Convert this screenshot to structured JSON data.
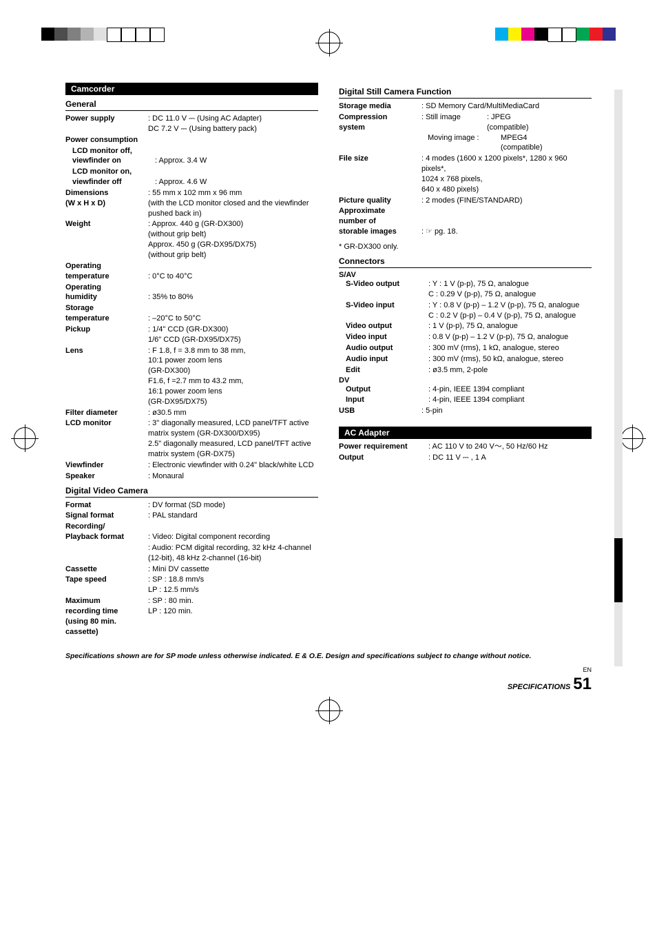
{
  "top_colors_left": [
    "#000000",
    "#4d4d4d",
    "#808080",
    "#b3b3b3",
    "#e0e0e0",
    "#ffffff",
    "#ffffff",
    "#ffffff",
    "#ffffff"
  ],
  "top_colors_right": [
    "#00aeef",
    "#fff200",
    "#ec008c",
    "#000000",
    "#ffffff",
    "#ffffff",
    "#00a651",
    "#ed1c24",
    "#2e3192"
  ],
  "camcorder_header": "Camcorder",
  "general_header": "General",
  "power_supply_label": "Power supply",
  "power_supply_value": "DC 11.0 V ⎓ (Using AC Adapter)\nDC 7.2 V ⎓ (Using battery pack)",
  "power_consumption_label": "Power consumption",
  "lcd_off_vf_on_label": "LCD monitor off,\nviewfinder on",
  "lcd_off_vf_on_value": "Approx. 3.4 W",
  "lcd_on_vf_off_label": "LCD monitor on,\nviewfinder off",
  "lcd_on_vf_off_value": "Approx. 4.6 W",
  "dimensions_label": "Dimensions\n(W x H x D)",
  "dimensions_value": "55 mm x 102 mm x 96 mm\n(with the LCD monitor closed and the viewfinder pushed back in)",
  "weight_label": "Weight",
  "weight_value": "Approx. 440 g (GR-DX300)\n(without grip belt)\nApprox. 450 g (GR-DX95/DX75)\n(without grip belt)",
  "op_temp_label": "Operating\ntemperature",
  "op_temp_value": "0°C to 40°C",
  "op_humidity_label": "Operating\nhumidity",
  "op_humidity_value": "35% to 80%",
  "storage_temp_label": "Storage\ntemperature",
  "storage_temp_value": "–20°C to 50°C",
  "pickup_label": "Pickup",
  "pickup_value": "1/4\" CCD (GR-DX300)\n1/6\" CCD (GR-DX95/DX75)",
  "lens_label": "Lens",
  "lens_value": "F 1.8, f = 3.8 mm to 38 mm,\n10:1 power zoom lens\n(GR-DX300)\nF1.6, f =2.7 mm to 43.2 mm,\n16:1 power zoom lens\n(GR-DX95/DX75)",
  "filter_label": "Filter diameter",
  "filter_value": "ø30.5 mm",
  "lcd_label": "LCD monitor",
  "lcd_value": "3\" diagonally measured, LCD panel/TFT active matrix system (GR-DX300/DX95)\n2.5\" diagonally measured, LCD panel/TFT active matrix system (GR-DX75)",
  "vf_label": "Viewfinder",
  "vf_value": "Electronic viewfinder with 0.24\" black/white LCD",
  "speaker_label": "Speaker",
  "speaker_value": "Monaural",
  "dvc_header": "Digital Video Camera",
  "format_label": "Format",
  "format_value": "DV format (SD mode)",
  "signal_label": "Signal format",
  "signal_value": "PAL standard",
  "recplay_label": "Recording/\nPlayback format",
  "recplay_value": "Video: Digital component recording",
  "recplay_audio": "Audio: PCM digital recording, 32 kHz 4-channel (12-bit), 48 kHz 2-channel (16-bit)",
  "cassette_label": "Cassette",
  "cassette_value": "Mini DV cassette",
  "tape_label": "Tape speed",
  "tape_value": "SP : 18.8 mm/s\nLP : 12.5 mm/s",
  "maxrec_label": "Maximum\nrecording time\n(using 80 min.\ncassette)",
  "maxrec_value": "SP : 80 min.\nLP : 120 min.",
  "dsc_header": "Digital Still Camera Function",
  "storage_media_label": "Storage media",
  "storage_media_value": "SD Memory Card/MultiMediaCard",
  "compression_label": "Compression\nsystem",
  "compression_still": "Still image",
  "compression_jpeg": "JPEG\n(compatible)",
  "compression_moving": "Moving image :",
  "compression_mpeg": "MPEG4\n(compatible)",
  "file_size_label": "File size",
  "file_size_value": "4 modes (1600 x 1200 pixels*, 1280 x 960 pixels*,\n1024 x 768 pixels,\n640 x 480 pixels)",
  "pic_quality_label": "Picture quality",
  "pic_quality_value": "2 modes (FINE/STANDARD)",
  "approx_label": "Approximate\nnumber of\nstorable images",
  "approx_value": "☞ pg. 18.",
  "dx300_note": "* GR-DX300 only.",
  "connectors_header": "Connectors",
  "sav_header": "S/AV",
  "svout_label": "S-Video output",
  "svout_value": "Y : 1 V (p-p), 75 Ω, analogue\nC : 0.29 V (p-p), 75 Ω, analogue",
  "svin_label": "S-Video input",
  "svin_value": "Y : 0.8 V (p-p) – 1.2 V (p-p), 75 Ω, analogue\nC : 0.2 V (p-p) – 0.4 V (p-p), 75 Ω, analogue",
  "vout_label": "Video output",
  "vout_value": "1 V (p-p), 75 Ω, analogue",
  "vin_label": "Video input",
  "vin_value": "0.8 V (p-p) – 1.2 V (p-p), 75 Ω, analogue",
  "aout_label": "Audio output",
  "aout_value": "300 mV (rms), 1 kΩ, analogue, stereo",
  "ain_label": "Audio input",
  "ain_value": "300 mV (rms), 50 kΩ, analogue, stereo",
  "edit_label": "Edit",
  "edit_value": "ø3.5 mm, 2-pole",
  "dv_header": "DV",
  "dv_out_label": "Output",
  "dv_out_value": "4-pin, IEEE 1394 compliant",
  "dv_in_label": "Input",
  "dv_in_value": "4-pin, IEEE 1394 compliant",
  "usb_label": "USB",
  "usb_value": "5-pin",
  "ac_header": "AC Adapter",
  "power_req_label": "Power requirement",
  "power_req_value": "AC 110 V to 240 V〜, 50 Hz/60 Hz",
  "output_label": "Output",
  "output_value": "DC 11 V ⎓ , 1 A",
  "footnote": "Specifications shown are for SP mode unless otherwise indicated. E & O.E. Design and specifications subject to change without notice.",
  "en_label": "EN",
  "page_num": "51",
  "page_section": "SPECIFICATIONS"
}
